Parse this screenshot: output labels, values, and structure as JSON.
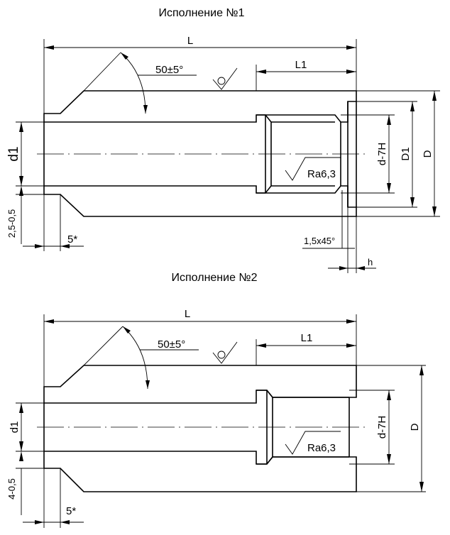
{
  "variant1": {
    "title": "Исполнение №1",
    "dims": {
      "L": "L",
      "L1": "L1",
      "angle": "50±5°",
      "d1": "d1",
      "d7H": "d-7H",
      "D1": "D1",
      "D": "D",
      "ra": "Ra6,3",
      "chamfer_depth": "2,5-0,5",
      "chamfer_len": "5*",
      "chamfer_bore": "1,5x45°",
      "h": "h"
    }
  },
  "variant2": {
    "title": "Исполнение №2",
    "dims": {
      "L": "L",
      "L1": "L1",
      "angle": "50±5°",
      "d1": "d1",
      "d7H": "d-7H",
      "D": "D",
      "ra": "Ra6,3",
      "chamfer_depth": "4-0,5",
      "chamfer_len": "5*"
    }
  }
}
